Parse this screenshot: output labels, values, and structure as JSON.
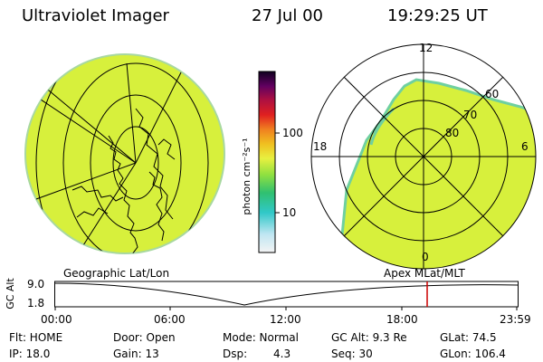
{
  "header": {
    "title": "Ultraviolet Imager",
    "date": "27 Jul 00",
    "time": "19:29:25 UT"
  },
  "colorbar": {
    "unit_label": "photon cm⁻²s⁻¹",
    "ticks": [
      "100",
      "10"
    ]
  },
  "polar": {
    "mlt_labels": [
      "12",
      "18",
      "6",
      "0"
    ],
    "lat_labels": [
      "60",
      "70",
      "80"
    ]
  },
  "panels": {
    "left_caption": "Geographic Lat/Lon",
    "right_caption": "Apex MLat/MLT"
  },
  "alt_plot": {
    "ylabel": "GC Alt",
    "y_top": "9.0",
    "y_bottom": "1.8",
    "x_ticks": [
      "00:00",
      "06:00",
      "12:00",
      "18:00",
      "23:59"
    ]
  },
  "status": {
    "flt": "Flt: HOME",
    "ip": "IP: 18.0",
    "door": "Door: Open",
    "gain": "Gain: 13",
    "mode": "Mode: Normal",
    "dsp_label": "Dsp:",
    "dsp_value": "4.3",
    "gcalt": "GC Alt: 9.3 Re",
    "seq": "Seq: 30",
    "glat": "GLat: 74.5",
    "glon": "GLon: 106.4"
  },
  "colors": {
    "image_fill": "#d7f03c",
    "marker": "#cc0000"
  }
}
